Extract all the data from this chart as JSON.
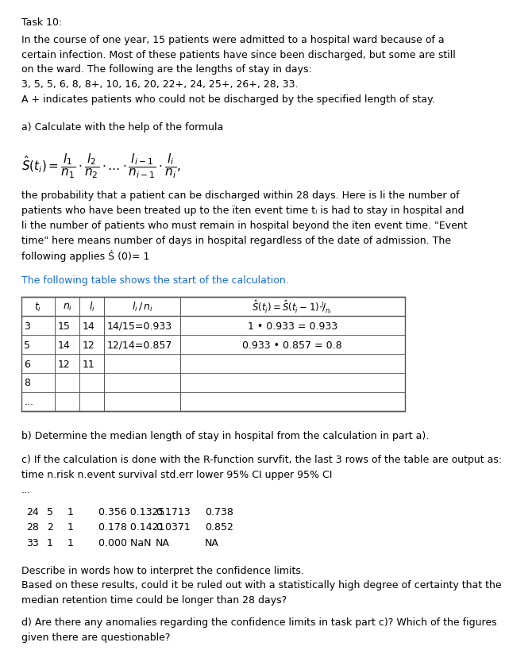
{
  "bg_color": "#ffffff",
  "text_color": "#000000",
  "blue_color": "#1a6dcc",
  "title": "Task 10:",
  "para1_lines": [
    "In the course of one year, 15 patients were admitted to a hospital ward because of a",
    "certain infection. Most of these patients have since been discharged, but some are still",
    "on the ward. The following are the lengths of stay in days:",
    "3, 5, 5, 6, 8, 8+, 10, 16, 20, 22+, 24, 25+, 26+, 28, 33.",
    "A + indicates patients who could not be discharged by the specified length of stay."
  ],
  "part_a_label": "a) Calculate with the help of the formula",
  "formula_desc_lines": [
    "the probability that a patient can be discharged within 28 days. Here is li the number of",
    "patients who have been treated up to the ïten event time tᵢ is had to stay in hospital and",
    "li the number of patients who must remain in hospital beyond the ïten event time. \"Event",
    "time\" here means number of days in hospital regardless of the date of admission. The",
    "following applies Ś (0)= 1"
  ],
  "table_intro": "The following table shows the start of the calculation.",
  "table_rows": [
    [
      "3",
      "15",
      "14",
      "14/15=0.933",
      "1 • 0.933 = 0.933"
    ],
    [
      "5",
      "14",
      "12",
      "12/14=0.857",
      "0.933 • 0.857 = 0.8"
    ],
    [
      "6",
      "12",
      "11",
      "",
      ""
    ],
    [
      "8",
      "",
      "",
      "",
      ""
    ],
    [
      "...",
      "",
      "",
      "",
      ""
    ]
  ],
  "part_b": "b) Determine the median length of stay in hospital from the calculation in part a).",
  "part_c_line1": "c) If the calculation is done with the R-function survfit, the last 3 rows of the table are output as:",
  "part_c_line2": "time n.risk n.event survival std.err lower 95% CI upper 95% CI",
  "part_c_dots": "...",
  "r_rows": [
    [
      "24",
      "5",
      "1",
      "0.356 0.1325",
      "0.1713",
      "0.738"
    ],
    [
      "28",
      "2",
      "1",
      "0.178 0.1421",
      "0.0371",
      "0.852"
    ],
    [
      "33",
      "1",
      "1",
      "0.000 NaN",
      "NA",
      "NA"
    ]
  ],
  "part_c_text1": "Describe in words how to interpret the confidence limits.",
  "part_c_text2": "Based on these results, could it be ruled out with a statistically high degree of certainty that the",
  "part_c_text3": "median retention time could be longer than 28 days?",
  "part_d_line1": "d) Are there any anomalies regarding the confidence limits in task part c)? Which of the figures",
  "part_d_line2": "given there are questionable?"
}
